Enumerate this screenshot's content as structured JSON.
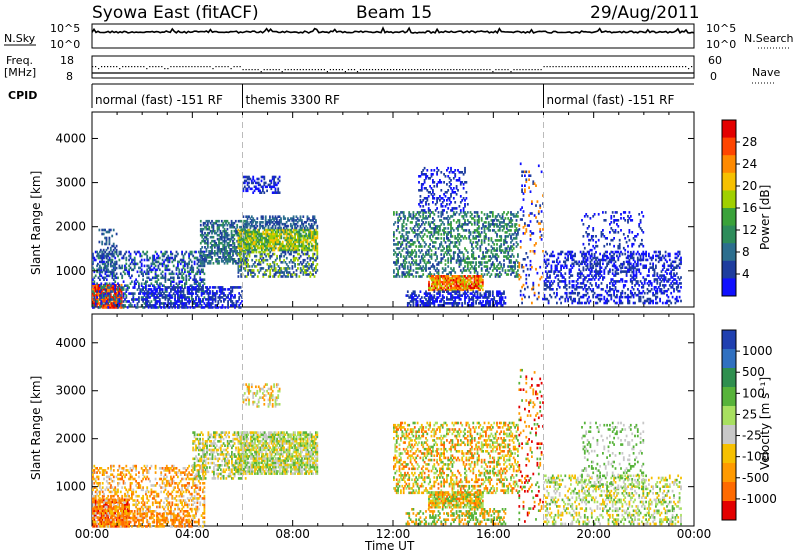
{
  "header": {
    "title": "Syowa East (fitACF)",
    "beam": "Beam 15",
    "date": "29/Aug/2011"
  },
  "top_panels": {
    "nsky_label": "N.Sky",
    "nsearch_label": "N.Search",
    "noise_ticks_left": [
      "10^5",
      "10^0"
    ],
    "noise_ticks_right": [
      "10^5",
      "10^0"
    ],
    "freq_label": [
      "Freq.",
      "[MHz]"
    ],
    "freq_ticks": [
      "18",
      "8"
    ],
    "nave_label": "Nave",
    "nave_ticks": [
      "60",
      "0"
    ],
    "cpid_label": "CPID",
    "cpid_segments": [
      {
        "label": "normal (fast) -151 RF",
        "start_hr": 0,
        "end_hr": 6
      },
      {
        "label": "themis 3300 RF",
        "start_hr": 6,
        "end_hr": 18
      },
      {
        "label": "normal (fast) -151 RF",
        "start_hr": 18,
        "end_hr": 24
      }
    ]
  },
  "chart_data": [
    {
      "type": "heatmap",
      "name": "power",
      "ylabel": "Slant Range [km]",
      "xlabel": "Time UT",
      "x_ticks": [
        "00:00",
        "04:00",
        "08:00",
        "12:00",
        "16:00",
        "20:00",
        "00:00"
      ],
      "y_ticks": [
        1000,
        2000,
        3000,
        4000
      ],
      "xlim_hours": [
        0,
        24
      ],
      "ylim_km": [
        180,
        4600
      ],
      "colorbar_label": "Power [dB]",
      "colorbar_ticks": [
        "28",
        "24",
        "20",
        "16",
        "12",
        "8",
        "4"
      ],
      "colorbar_colors": [
        "#e30000",
        "#ff4500",
        "#ff8a00",
        "#f6c000",
        "#a0d000",
        "#3aa23a",
        "#2d8c5a",
        "#2c6e8e",
        "#1e3d9e",
        "#1010ff"
      ],
      "dashed_lines_hours": [
        6,
        18
      ],
      "blobs": [
        {
          "t0": 0.0,
          "t1": 1.2,
          "r0": 200,
          "r1": 750,
          "c": [
            0,
            1,
            2
          ],
          "d": 0.85
        },
        {
          "t0": 0.0,
          "t1": 4.5,
          "r0": 200,
          "r1": 1500,
          "c": [
            6,
            7,
            8,
            9
          ],
          "d": 0.35
        },
        {
          "t0": 0.2,
          "t1": 1.0,
          "r0": 1000,
          "r1": 2000,
          "c": [
            7,
            8
          ],
          "d": 0.3
        },
        {
          "t0": 4.3,
          "t1": 6.2,
          "r0": 1200,
          "r1": 2200,
          "c": [
            7,
            8,
            6
          ],
          "d": 0.55
        },
        {
          "t0": 5.8,
          "t1": 9.0,
          "r0": 1500,
          "r1": 2000,
          "c": [
            3,
            4,
            5,
            6
          ],
          "d": 0.75
        },
        {
          "t0": 5.8,
          "t1": 9.0,
          "r0": 900,
          "r1": 1500,
          "c": [
            7,
            8,
            4
          ],
          "d": 0.45
        },
        {
          "t0": 6.0,
          "t1": 9.0,
          "r0": 2000,
          "r1": 2300,
          "c": [
            7,
            8
          ],
          "d": 0.45
        },
        {
          "t0": 6.0,
          "t1": 7.5,
          "r0": 2800,
          "r1": 3200,
          "c": [
            8,
            9
          ],
          "d": 0.45
        },
        {
          "t0": 2.0,
          "t1": 6.0,
          "r0": 200,
          "r1": 700,
          "c": [
            8,
            9
          ],
          "d": 0.45
        },
        {
          "t0": 12.0,
          "t1": 17.0,
          "r0": 900,
          "r1": 2400,
          "c": [
            6,
            7,
            8,
            5
          ],
          "d": 0.35
        },
        {
          "t0": 13.4,
          "t1": 15.6,
          "r0": 600,
          "r1": 950,
          "c": [
            0,
            1,
            2,
            3,
            4
          ],
          "d": 0.8
        },
        {
          "t0": 12.5,
          "t1": 16.5,
          "r0": 250,
          "r1": 600,
          "c": [
            8,
            9
          ],
          "d": 0.5
        },
        {
          "t0": 13.0,
          "t1": 15.0,
          "r0": 2400,
          "r1": 3400,
          "c": [
            8,
            9
          ],
          "d": 0.2
        },
        {
          "t0": 17.0,
          "t1": 18.0,
          "r0": 300,
          "r1": 3500,
          "c": [
            8,
            9,
            2
          ],
          "d": 0.12
        },
        {
          "t0": 18.0,
          "t1": 23.5,
          "r0": 300,
          "r1": 1500,
          "c": [
            8,
            9
          ],
          "d": 0.32
        },
        {
          "t0": 19.5,
          "t1": 22.0,
          "r0": 1000,
          "r1": 2400,
          "c": [
            8,
            9
          ],
          "d": 0.15
        }
      ]
    },
    {
      "type": "heatmap",
      "name": "velocity",
      "ylabel": "Slant Range [km]",
      "xlabel": "Time UT",
      "x_ticks": [
        "00:00",
        "04:00",
        "08:00",
        "12:00",
        "16:00",
        "20:00",
        "00:00"
      ],
      "y_ticks": [
        1000,
        2000,
        3000,
        4000
      ],
      "xlim_hours": [
        0,
        24
      ],
      "ylim_km": [
        180,
        4600
      ],
      "colorbar_label": "Velocity [m s⁻¹]",
      "colorbar_ticks": [
        "1000",
        "500",
        "100",
        "25",
        "-25",
        "-100",
        "-500",
        "-1000"
      ],
      "colorbar_colors": [
        "#2040b0",
        "#3070c0",
        "#2f8f4f",
        "#57b33a",
        "#a8e060",
        "#c8c8c8",
        "#f6c000",
        "#ff9a00",
        "#ff6a00",
        "#e30000"
      ],
      "dashed_lines_hours": [
        6,
        18
      ],
      "blobs": [
        {
          "t0": 0.0,
          "t1": 1.5,
          "r0": 200,
          "r1": 800,
          "c": [
            7,
            8,
            9
          ],
          "d": 0.85
        },
        {
          "t0": 0.0,
          "t1": 4.5,
          "r0": 200,
          "r1": 1500,
          "c": [
            6,
            7,
            8,
            5
          ],
          "d": 0.35
        },
        {
          "t0": 4.0,
          "t1": 6.2,
          "r0": 1200,
          "r1": 2200,
          "c": [
            5,
            6,
            3
          ],
          "d": 0.45
        },
        {
          "t0": 5.8,
          "t1": 9.0,
          "r0": 1300,
          "r1": 2200,
          "c": [
            5,
            3,
            4,
            6
          ],
          "d": 0.75
        },
        {
          "t0": 6.0,
          "t1": 7.5,
          "r0": 2700,
          "r1": 3200,
          "c": [
            5,
            4,
            7
          ],
          "d": 0.35
        },
        {
          "t0": 1.0,
          "t1": 4.0,
          "r0": 200,
          "r1": 500,
          "c": [
            7,
            8
          ],
          "d": 0.35
        },
        {
          "t0": 12.0,
          "t1": 17.0,
          "r0": 900,
          "r1": 2400,
          "c": [
            3,
            4,
            6,
            7,
            8
          ],
          "d": 0.35
        },
        {
          "t0": 13.4,
          "t1": 15.6,
          "r0": 600,
          "r1": 950,
          "c": [
            3,
            4,
            6,
            7,
            8
          ],
          "d": 0.8
        },
        {
          "t0": 12.5,
          "t1": 16.5,
          "r0": 250,
          "r1": 600,
          "c": [
            3,
            7
          ],
          "d": 0.35
        },
        {
          "t0": 17.0,
          "t1": 18.0,
          "r0": 300,
          "r1": 3500,
          "c": [
            9,
            3,
            7
          ],
          "d": 0.12
        },
        {
          "t0": 18.0,
          "t1": 23.5,
          "r0": 250,
          "r1": 1300,
          "c": [
            3,
            4,
            5,
            6
          ],
          "d": 0.32
        },
        {
          "t0": 19.5,
          "t1": 22.0,
          "r0": 1000,
          "r1": 2400,
          "c": [
            3,
            5
          ],
          "d": 0.15
        }
      ]
    }
  ]
}
